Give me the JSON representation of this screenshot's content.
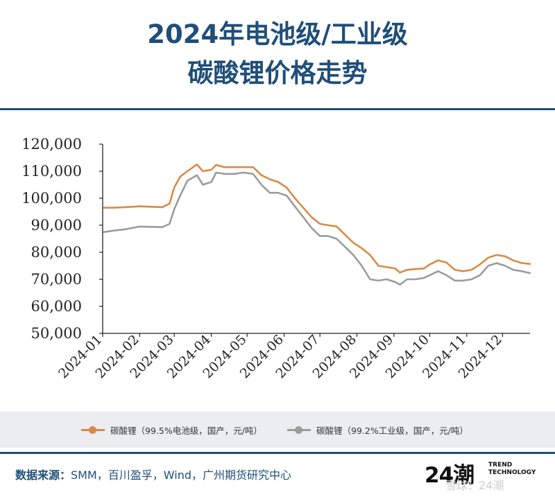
{
  "header": {
    "title_line1": "2024年电池级/工业级",
    "title_line2": "碳酸锂价格走势"
  },
  "footer": {
    "source_label": "数据来源：",
    "source_text": "SMM，百川盈孚，Wind，广州期货研究中心",
    "logo_big": "24潮",
    "logo_small_1": "TREND",
    "logo_small_2": "TECHNOLOGY",
    "watermark": "雪球：24潮"
  },
  "colors": {
    "title": "#1f4e79",
    "battery_series": "#d98a45",
    "industrial_series": "#9b9b9b"
  },
  "chart_data": {
    "type": "line",
    "xlabel": "",
    "ylabel": "",
    "ylim": [
      50000,
      120000
    ],
    "yticks": [
      50000,
      60000,
      70000,
      80000,
      90000,
      100000,
      110000,
      120000
    ],
    "ytick_labels": [
      "50,000",
      "60,000",
      "70,000",
      "80,000",
      "90,000",
      "100,000",
      "110,000",
      "120,000"
    ],
    "xticks": [
      "2024-01",
      "2024-02",
      "2024-03",
      "2024-04",
      "2024-05",
      "2024-06",
      "2024-07",
      "2024-08",
      "2024-09",
      "2024-10",
      "2024-11",
      "2024-12"
    ],
    "x_end": "2024-12-24",
    "grid": false,
    "legend_position": "bottom",
    "series": [
      {
        "name": "碳酸锂（99.5%电池级，国产，元/吨）",
        "color": "#d98a45",
        "x": [
          "2024-01-02",
          "2024-01-10",
          "2024-01-20",
          "2024-02-01",
          "2024-02-20",
          "2024-02-26",
          "2024-03-01",
          "2024-03-06",
          "2024-03-12",
          "2024-03-20",
          "2024-03-25",
          "2024-04-01",
          "2024-04-05",
          "2024-04-12",
          "2024-04-20",
          "2024-04-28",
          "2024-05-06",
          "2024-05-13",
          "2024-05-20",
          "2024-05-27",
          "2024-06-03",
          "2024-06-10",
          "2024-06-17",
          "2024-06-24",
          "2024-07-01",
          "2024-07-08",
          "2024-07-15",
          "2024-07-22",
          "2024-07-29",
          "2024-08-05",
          "2024-08-12",
          "2024-08-19",
          "2024-08-26",
          "2024-09-02",
          "2024-09-06",
          "2024-09-12",
          "2024-09-19",
          "2024-09-26",
          "2024-10-01",
          "2024-10-08",
          "2024-10-15",
          "2024-10-22",
          "2024-10-29",
          "2024-11-05",
          "2024-11-12",
          "2024-11-19",
          "2024-11-26",
          "2024-12-03",
          "2024-12-10",
          "2024-12-17",
          "2024-12-24"
        ],
        "y": [
          96500,
          96500,
          96700,
          97000,
          96700,
          98000,
          104000,
          108000,
          110000,
          112500,
          110000,
          110500,
          112300,
          111500,
          111500,
          111500,
          111500,
          108500,
          107000,
          106000,
          104000,
          100000,
          96500,
          93000,
          90500,
          90000,
          89500,
          86500,
          83500,
          81500,
          79000,
          75000,
          74500,
          74000,
          72500,
          73500,
          73800,
          74000,
          75500,
          77000,
          76200,
          73500,
          73000,
          73500,
          75500,
          78000,
          79000,
          78500,
          77000,
          76000,
          75700
        ]
      },
      {
        "name": "碳酸锂（99.2%工业级，国产，元/吨）",
        "color": "#9b9b9b",
        "x": [
          "2024-01-02",
          "2024-01-10",
          "2024-01-20",
          "2024-02-01",
          "2024-02-20",
          "2024-02-26",
          "2024-03-01",
          "2024-03-06",
          "2024-03-12",
          "2024-03-20",
          "2024-03-25",
          "2024-04-01",
          "2024-04-05",
          "2024-04-12",
          "2024-04-20",
          "2024-04-28",
          "2024-05-06",
          "2024-05-13",
          "2024-05-20",
          "2024-05-27",
          "2024-06-03",
          "2024-06-10",
          "2024-06-17",
          "2024-06-24",
          "2024-07-01",
          "2024-07-08",
          "2024-07-15",
          "2024-07-22",
          "2024-07-29",
          "2024-08-05",
          "2024-08-12",
          "2024-08-19",
          "2024-08-26",
          "2024-09-02",
          "2024-09-06",
          "2024-09-12",
          "2024-09-19",
          "2024-09-26",
          "2024-10-01",
          "2024-10-08",
          "2024-10-15",
          "2024-10-22",
          "2024-10-29",
          "2024-11-05",
          "2024-11-12",
          "2024-11-19",
          "2024-11-26",
          "2024-12-03",
          "2024-12-10",
          "2024-12-17",
          "2024-12-24"
        ],
        "y": [
          87500,
          88000,
          88500,
          89500,
          89300,
          90500,
          96000,
          101000,
          106500,
          108500,
          105000,
          106000,
          109500,
          109000,
          109000,
          109500,
          109000,
          105000,
          102000,
          102000,
          101000,
          97000,
          93000,
          89000,
          86000,
          86000,
          85000,
          82000,
          79000,
          75000,
          70000,
          69500,
          70000,
          69000,
          68000,
          70000,
          70000,
          70500,
          71500,
          73000,
          71500,
          69500,
          69500,
          70000,
          71500,
          75000,
          76000,
          75000,
          73500,
          73000,
          72300
        ]
      }
    ]
  }
}
